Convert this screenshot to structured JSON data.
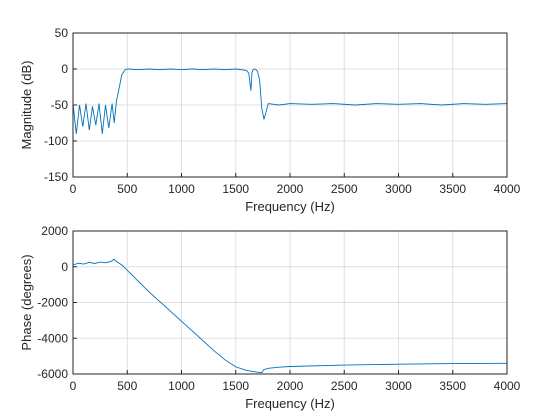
{
  "chart_data": [
    {
      "type": "line",
      "title": "",
      "xlabel": "Frequency (Hz)",
      "ylabel": "Magnitude (dB)",
      "xlim": [
        0,
        4000
      ],
      "ylim": [
        -150,
        50
      ],
      "xticks": [
        0,
        500,
        1000,
        1500,
        2000,
        2500,
        3000,
        3500,
        4000
      ],
      "yticks": [
        -150,
        -100,
        -50,
        0,
        50
      ],
      "grid": true,
      "color": "#0072bd",
      "series": [
        {
          "x": [
            0,
            30,
            60,
            90,
            120,
            150,
            180,
            210,
            240,
            270,
            300,
            330,
            360,
            380,
            400,
            420,
            450,
            480,
            500,
            600,
            700,
            800,
            900,
            1000,
            1100,
            1200,
            1300,
            1400,
            1500,
            1550,
            1600,
            1620,
            1640,
            1650,
            1660,
            1680,
            1700,
            1720,
            1740,
            1760,
            1800,
            1900,
            2000,
            2200,
            2400,
            2600,
            2800,
            3000,
            3200,
            3400,
            3600,
            3800,
            4000
          ],
          "y": [
            -48,
            -90,
            -50,
            -80,
            -48,
            -85,
            -52,
            -78,
            -48,
            -90,
            -50,
            -82,
            -48,
            -75,
            -45,
            -30,
            -8,
            -1,
            0,
            -1,
            0,
            -1,
            0,
            -1,
            0,
            -1,
            0,
            -1,
            0,
            -1,
            -2,
            -6,
            -30,
            -5,
            -1,
            0,
            -3,
            -15,
            -55,
            -70,
            -48,
            -50,
            -48,
            -49,
            -48,
            -50,
            -48,
            -49,
            -48,
            -50,
            -48,
            -49,
            -48
          ]
        }
      ]
    },
    {
      "type": "line",
      "title": "",
      "xlabel": "Frequency (Hz)",
      "ylabel": "Phase (degrees)",
      "xlim": [
        0,
        4000
      ],
      "ylim": [
        -6000,
        2000
      ],
      "xticks": [
        0,
        500,
        1000,
        1500,
        2000,
        2500,
        3000,
        3500,
        4000
      ],
      "yticks": [
        -6000,
        -4000,
        -2000,
        0,
        2000
      ],
      "grid": true,
      "color": "#0072bd",
      "series": [
        {
          "x": [
            0,
            50,
            100,
            150,
            200,
            250,
            300,
            350,
            380,
            400,
            450,
            500,
            600,
            700,
            800,
            900,
            1000,
            1100,
            1200,
            1300,
            1400,
            1500,
            1600,
            1700,
            1740,
            1760,
            1800,
            1900,
            2000,
            2500,
            3000,
            3500,
            4000
          ],
          "y": [
            100,
            200,
            150,
            250,
            180,
            260,
            220,
            300,
            420,
            300,
            100,
            -200,
            -800,
            -1400,
            -1950,
            -2500,
            -3050,
            -3600,
            -4150,
            -4700,
            -5200,
            -5600,
            -5800,
            -5900,
            -5920,
            -5750,
            -5680,
            -5620,
            -5580,
            -5500,
            -5450,
            -5420,
            -5400
          ]
        }
      ]
    }
  ]
}
